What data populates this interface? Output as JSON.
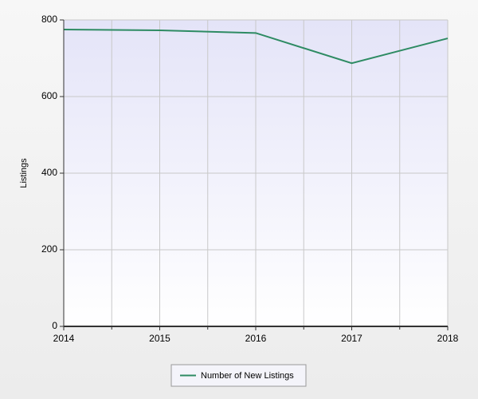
{
  "chart_data": {
    "type": "line",
    "y_label": "Listings",
    "x": [
      2014,
      2015,
      2016,
      2017,
      2018
    ],
    "series": [
      {
        "name": "Number of New Listings",
        "color": "#2e8b63",
        "values": [
          775,
          773,
          766,
          687,
          752
        ]
      }
    ],
    "xlim": [
      2014,
      2018
    ],
    "xticks": [
      2014,
      2015,
      2016,
      2017,
      2018
    ],
    "ylim": [
      0,
      800
    ],
    "yticks": [
      0,
      200,
      400,
      600,
      800
    ],
    "grid": true
  }
}
